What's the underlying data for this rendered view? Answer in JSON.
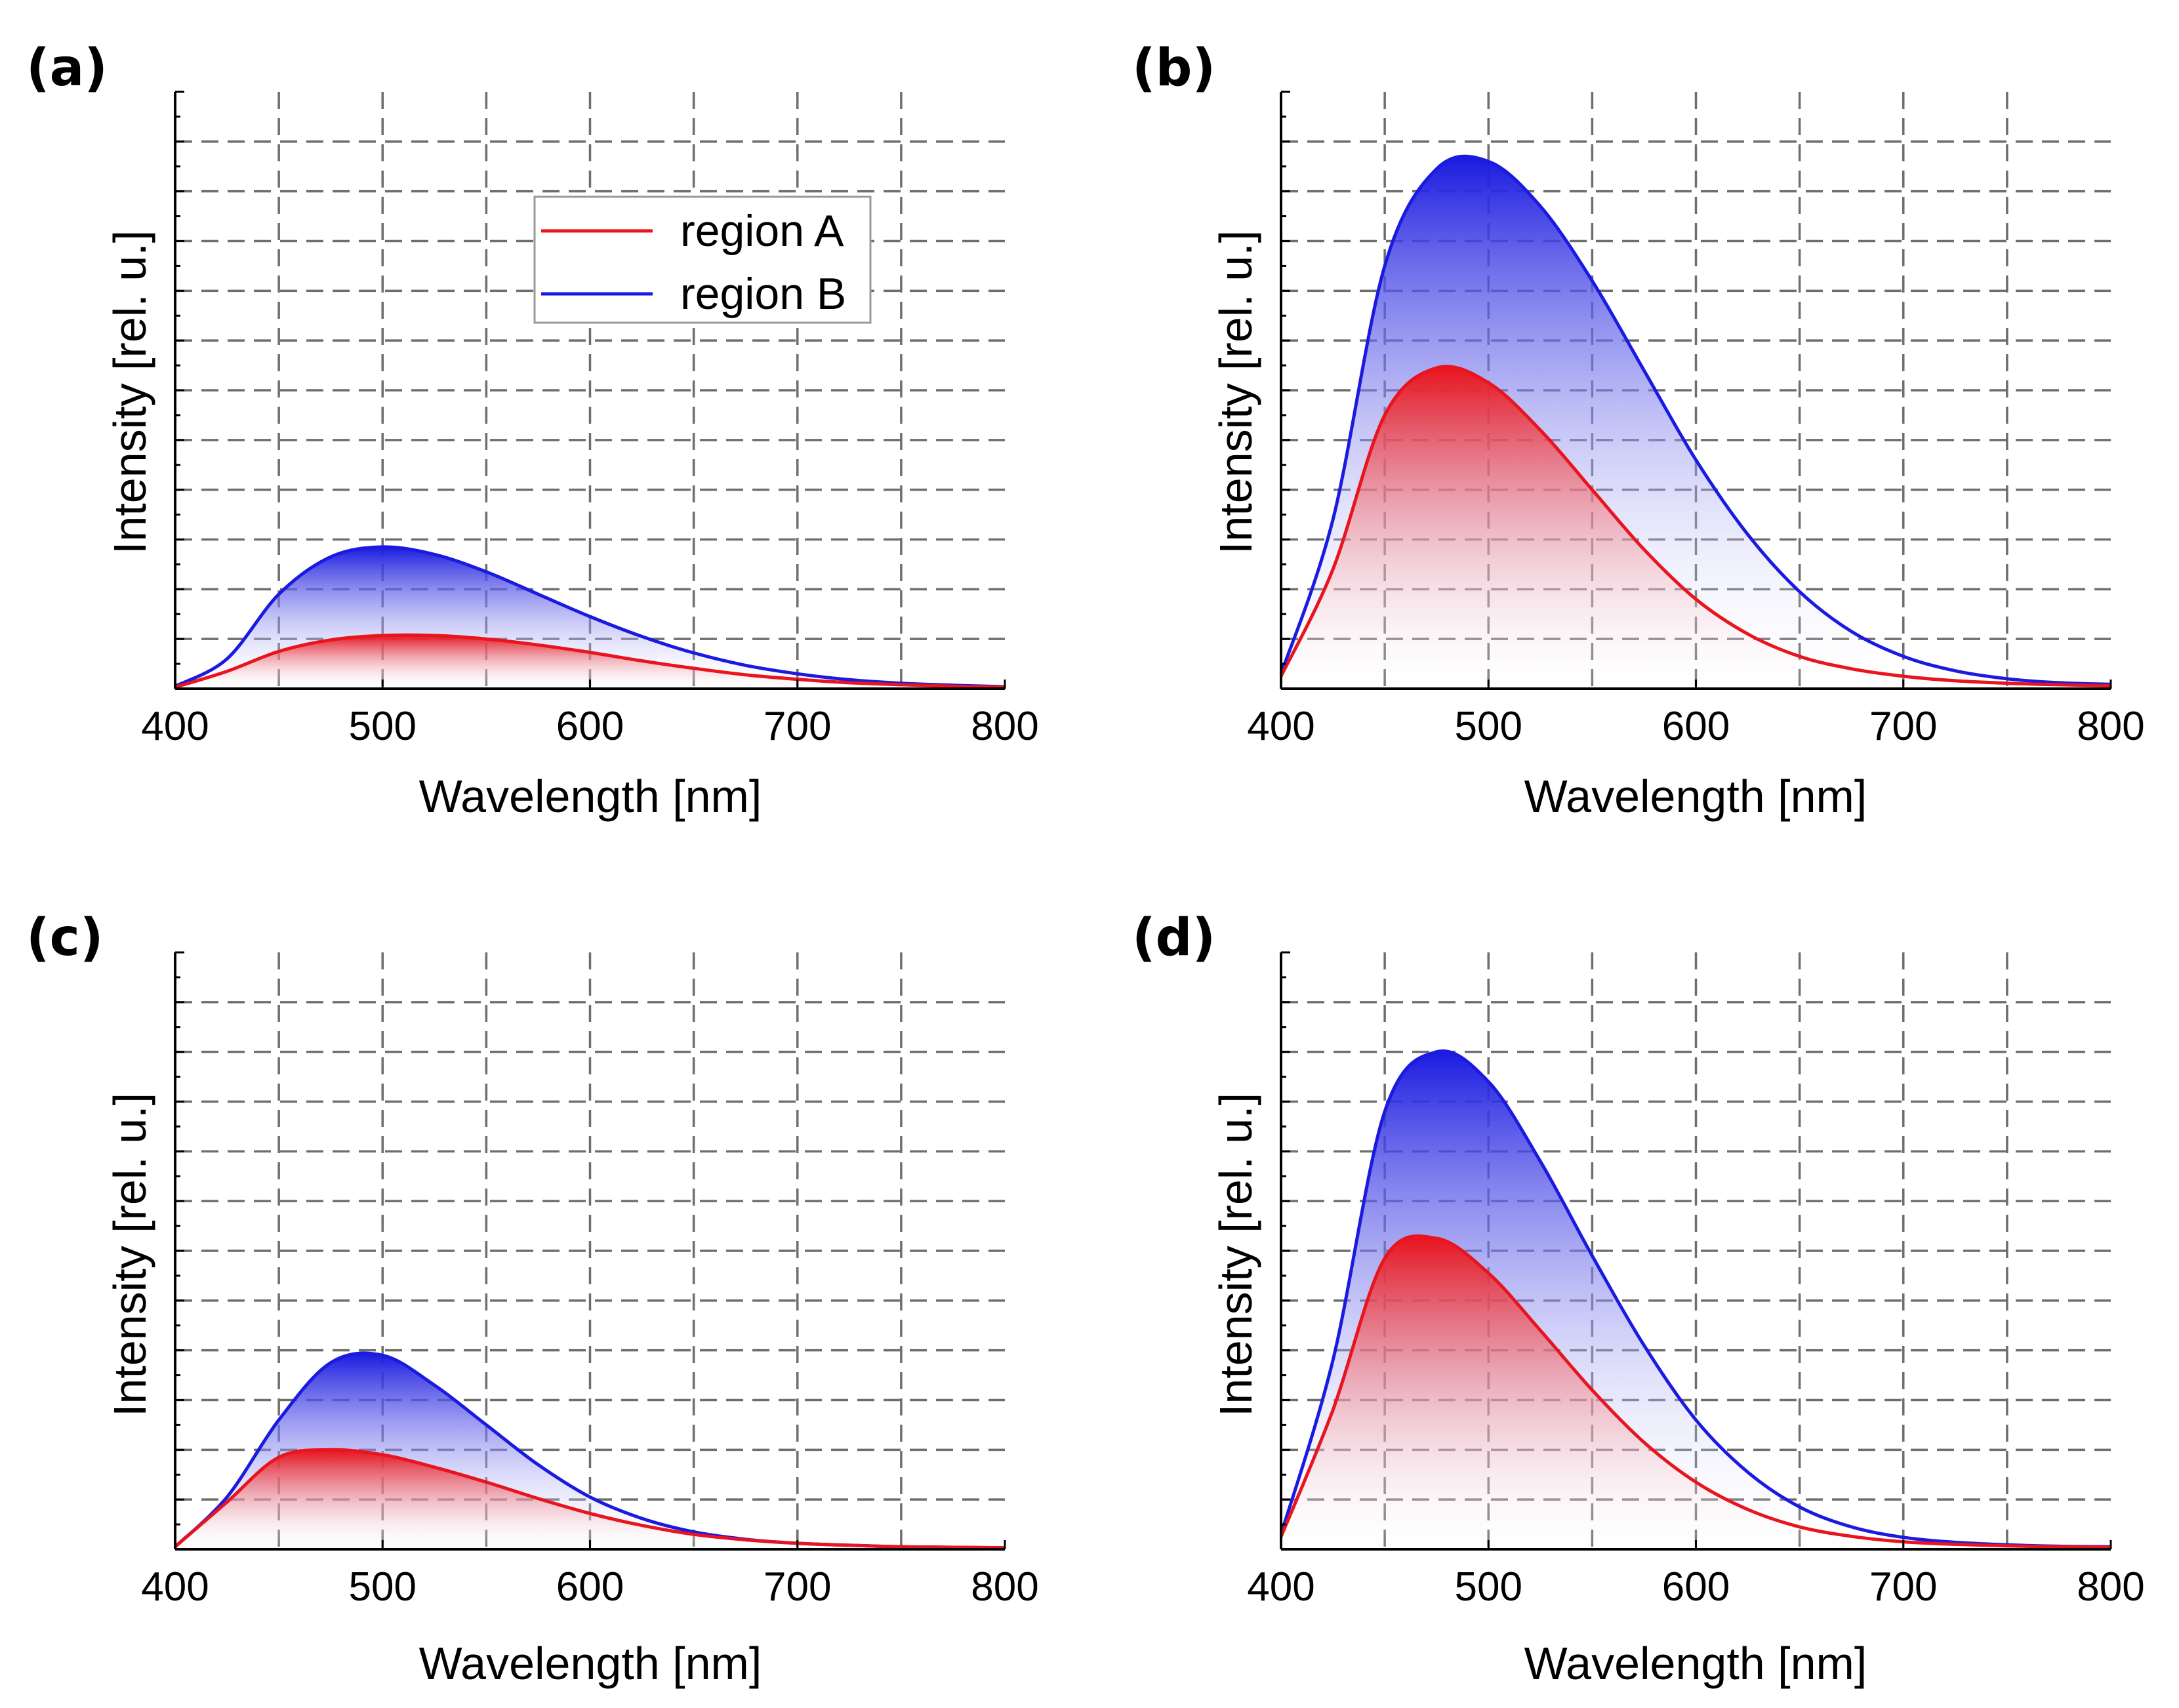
{
  "figure": {
    "colors": {
      "region_a": "#e8141e",
      "region_b": "#1a1ae0",
      "grid": "#6e6e6e"
    }
  },
  "chart_data": [
    {
      "panel": "(a)",
      "type": "area",
      "xlabel": "Wavelength [nm]",
      "ylabel": "Intensity [rel. u.]",
      "xlim": [
        400,
        800
      ],
      "ylim": [
        0,
        12
      ],
      "xticks": [
        400,
        500,
        600,
        700,
        800
      ],
      "xtick_labels": [
        "400",
        "500",
        "600",
        "700",
        "800"
      ],
      "x_gridlines": [
        450,
        500,
        550,
        600,
        650,
        700,
        750
      ],
      "y_gridlines": [
        1,
        2,
        3,
        4,
        5,
        6,
        7,
        8,
        9,
        10,
        11
      ],
      "legend": {
        "position": "top-center",
        "entries": [
          "region A",
          "region B"
        ]
      },
      "series": [
        {
          "name": "region A",
          "color": "#e8141e",
          "x": [
            400,
            425,
            450,
            475,
            500,
            525,
            550,
            575,
            600,
            625,
            650,
            675,
            700,
            725,
            750,
            775,
            800
          ],
          "values": [
            0.03,
            0.35,
            0.75,
            0.98,
            1.07,
            1.07,
            1.0,
            0.88,
            0.73,
            0.56,
            0.41,
            0.28,
            0.19,
            0.12,
            0.08,
            0.05,
            0.03
          ]
        },
        {
          "name": "region B",
          "color": "#1a1ae0",
          "x": [
            400,
            425,
            450,
            475,
            500,
            525,
            550,
            575,
            600,
            625,
            650,
            675,
            700,
            725,
            750,
            775,
            800
          ],
          "values": [
            0.05,
            0.6,
            1.9,
            2.65,
            2.85,
            2.7,
            2.35,
            1.9,
            1.45,
            1.05,
            0.72,
            0.47,
            0.3,
            0.18,
            0.11,
            0.07,
            0.04
          ]
        }
      ]
    },
    {
      "panel": "(b)",
      "type": "area",
      "xlabel": "Wavelength [nm]",
      "ylabel": "Intensity [rel. u.]",
      "xlim": [
        400,
        800
      ],
      "ylim": [
        0,
        12
      ],
      "xticks": [
        400,
        500,
        600,
        700,
        800
      ],
      "xtick_labels": [
        "400",
        "500",
        "600",
        "700",
        "800"
      ],
      "x_gridlines": [
        450,
        500,
        550,
        600,
        650,
        700,
        750
      ],
      "y_gridlines": [
        1,
        2,
        3,
        4,
        5,
        6,
        7,
        8,
        9,
        10,
        11
      ],
      "series": [
        {
          "name": "region A",
          "color": "#e8141e",
          "x": [
            400,
            425,
            450,
            475,
            500,
            525,
            550,
            575,
            600,
            625,
            650,
            675,
            700,
            725,
            750,
            775,
            800
          ],
          "values": [
            0.25,
            2.4,
            5.5,
            6.45,
            6.15,
            5.2,
            4.0,
            2.8,
            1.8,
            1.1,
            0.65,
            0.4,
            0.25,
            0.16,
            0.11,
            0.08,
            0.06
          ]
        },
        {
          "name": "region B",
          "color": "#1a1ae0",
          "x": [
            400,
            425,
            450,
            475,
            500,
            525,
            550,
            575,
            600,
            625,
            650,
            675,
            700,
            725,
            750,
            775,
            800
          ],
          "values": [
            0.3,
            3.4,
            8.5,
            10.45,
            10.6,
            9.7,
            8.2,
            6.4,
            4.6,
            3.1,
            1.95,
            1.15,
            0.65,
            0.36,
            0.2,
            0.12,
            0.09
          ]
        }
      ]
    },
    {
      "panel": "(c)",
      "type": "area",
      "xlabel": "Wavelength [nm]",
      "ylabel": "Intensity [rel. u.]",
      "xlim": [
        400,
        800
      ],
      "ylim": [
        0,
        12
      ],
      "xticks": [
        400,
        500,
        600,
        700,
        800
      ],
      "xtick_labels": [
        "400",
        "500",
        "600",
        "700",
        "800"
      ],
      "x_gridlines": [
        450,
        500,
        550,
        600,
        650,
        700,
        750
      ],
      "y_gridlines": [
        1,
        2,
        3,
        4,
        5,
        6,
        7,
        8,
        9,
        10,
        11
      ],
      "series": [
        {
          "name": "region A",
          "color": "#e8141e",
          "x": [
            400,
            425,
            450,
            475,
            500,
            525,
            550,
            575,
            600,
            625,
            650,
            675,
            700,
            725,
            750,
            775,
            800
          ],
          "values": [
            0.05,
            0.95,
            1.85,
            2.0,
            1.9,
            1.65,
            1.35,
            1.02,
            0.72,
            0.48,
            0.3,
            0.19,
            0.12,
            0.08,
            0.05,
            0.04,
            0.03
          ]
        },
        {
          "name": "region B",
          "color": "#1a1ae0",
          "x": [
            400,
            425,
            450,
            475,
            500,
            525,
            550,
            575,
            600,
            625,
            650,
            675,
            700,
            725,
            750,
            775,
            800
          ],
          "values": [
            0.05,
            1.05,
            2.6,
            3.75,
            3.9,
            3.3,
            2.5,
            1.7,
            1.05,
            0.62,
            0.35,
            0.2,
            0.12,
            0.08,
            0.05,
            0.04,
            0.03
          ]
        }
      ]
    },
    {
      "panel": "(d)",
      "type": "area",
      "xlabel": "Wavelength [nm]",
      "ylabel": "Intensity [rel. u.]",
      "xlim": [
        400,
        800
      ],
      "ylim": [
        0,
        12
      ],
      "xticks": [
        400,
        500,
        600,
        700,
        800
      ],
      "xtick_labels": [
        "400",
        "500",
        "600",
        "700",
        "800"
      ],
      "x_gridlines": [
        450,
        500,
        550,
        600,
        650,
        700,
        750
      ],
      "y_gridlines": [
        1,
        2,
        3,
        4,
        5,
        6,
        7,
        8,
        9,
        10,
        11
      ],
      "series": [
        {
          "name": "region A",
          "color": "#e8141e",
          "x": [
            400,
            425,
            450,
            475,
            500,
            525,
            550,
            575,
            600,
            625,
            650,
            675,
            700,
            725,
            750,
            775,
            800
          ],
          "values": [
            0.25,
            2.8,
            5.85,
            6.25,
            5.55,
            4.4,
            3.2,
            2.15,
            1.35,
            0.8,
            0.45,
            0.26,
            0.15,
            0.1,
            0.07,
            0.05,
            0.04
          ]
        },
        {
          "name": "region B",
          "color": "#1a1ae0",
          "x": [
            400,
            425,
            450,
            475,
            500,
            525,
            550,
            575,
            600,
            625,
            650,
            675,
            700,
            725,
            750,
            775,
            800
          ],
          "values": [
            0.3,
            3.8,
            8.8,
            10.0,
            9.4,
            7.8,
            5.9,
            4.1,
            2.6,
            1.55,
            0.85,
            0.45,
            0.24,
            0.14,
            0.09,
            0.06,
            0.05
          ]
        }
      ]
    }
  ]
}
